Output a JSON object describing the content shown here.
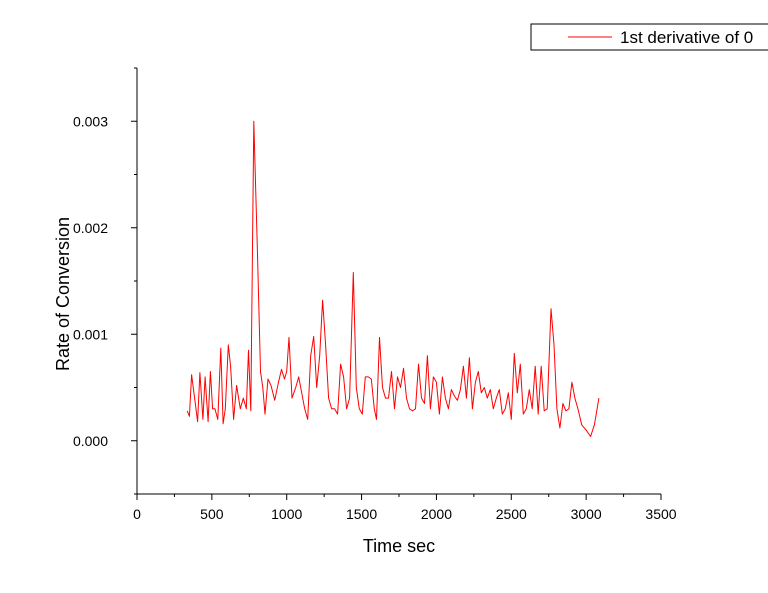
{
  "chart_data": {
    "type": "line",
    "title": "",
    "xlabel": "Time sec",
    "ylabel": "Rate of Conversion",
    "xlim": [
      0,
      3500
    ],
    "ylim": [
      -0.0005,
      0.0035
    ],
    "x_ticks": [
      0,
      500,
      1000,
      1500,
      2000,
      2500,
      3000,
      3500
    ],
    "x_tick_labels": [
      "0",
      "500",
      "1000",
      "1500",
      "2000",
      "2500",
      "3000",
      "3500"
    ],
    "y_ticks": [
      0.0,
      0.001,
      0.002,
      0.003
    ],
    "y_tick_labels": [
      "0.000",
      "0.001",
      "0.002",
      "0.003"
    ],
    "grid": false,
    "legend_position": "top-right",
    "series": [
      {
        "name": "1st derivative of 0",
        "color": "#ff0000",
        "points": [
          [
            335,
            0.00028
          ],
          [
            350,
            0.00023
          ],
          [
            365,
            0.00062
          ],
          [
            385,
            0.0004
          ],
          [
            405,
            0.00018
          ],
          [
            420,
            0.00064
          ],
          [
            440,
            0.0002
          ],
          [
            455,
            0.0006
          ],
          [
            475,
            0.00018
          ],
          [
            490,
            0.00065
          ],
          [
            505,
            0.0003
          ],
          [
            520,
            0.0003
          ],
          [
            540,
            0.0002
          ],
          [
            560,
            0.00087
          ],
          [
            575,
            0.00016
          ],
          [
            590,
            0.0003
          ],
          [
            610,
            0.0009
          ],
          [
            625,
            0.0007
          ],
          [
            645,
            0.0002
          ],
          [
            665,
            0.00052
          ],
          [
            690,
            0.0003
          ],
          [
            710,
            0.0004
          ],
          [
            730,
            0.0003
          ],
          [
            745,
            0.00085
          ],
          [
            760,
            0.00028
          ],
          [
            780,
            0.003
          ],
          [
            805,
            0.00175
          ],
          [
            825,
            0.00065
          ],
          [
            840,
            0.0005
          ],
          [
            855,
            0.00025
          ],
          [
            875,
            0.00058
          ],
          [
            895,
            0.00052
          ],
          [
            920,
            0.00038
          ],
          [
            945,
            0.00055
          ],
          [
            965,
            0.00067
          ],
          [
            985,
            0.00058
          ],
          [
            1000,
            0.00065
          ],
          [
            1015,
            0.00097
          ],
          [
            1035,
            0.0004
          ],
          [
            1060,
            0.0005
          ],
          [
            1080,
            0.0006
          ],
          [
            1100,
            0.00045
          ],
          [
            1120,
            0.0003
          ],
          [
            1140,
            0.0002
          ],
          [
            1160,
            0.0008
          ],
          [
            1180,
            0.00098
          ],
          [
            1200,
            0.0005
          ],
          [
            1220,
            0.0008
          ],
          [
            1240,
            0.00132
          ],
          [
            1260,
            0.0009
          ],
          [
            1280,
            0.0004
          ],
          [
            1300,
            0.0003
          ],
          [
            1320,
            0.0003
          ],
          [
            1340,
            0.00025
          ],
          [
            1360,
            0.00072
          ],
          [
            1380,
            0.0006
          ],
          [
            1400,
            0.0003
          ],
          [
            1420,
            0.0004
          ],
          [
            1445,
            0.00158
          ],
          [
            1465,
            0.0005
          ],
          [
            1485,
            0.0003
          ],
          [
            1505,
            0.00025
          ],
          [
            1525,
            0.0006
          ],
          [
            1545,
            0.0006
          ],
          [
            1565,
            0.00058
          ],
          [
            1585,
            0.0003
          ],
          [
            1600,
            0.0002
          ],
          [
            1620,
            0.00097
          ],
          [
            1640,
            0.0005
          ],
          [
            1660,
            0.0004
          ],
          [
            1680,
            0.0004
          ],
          [
            1700,
            0.00065
          ],
          [
            1720,
            0.0003
          ],
          [
            1740,
            0.0006
          ],
          [
            1760,
            0.0005
          ],
          [
            1780,
            0.00068
          ],
          [
            1800,
            0.0004
          ],
          [
            1820,
            0.0003
          ],
          [
            1840,
            0.00028
          ],
          [
            1860,
            0.0003
          ],
          [
            1880,
            0.00072
          ],
          [
            1900,
            0.0004
          ],
          [
            1920,
            0.00035
          ],
          [
            1940,
            0.0008
          ],
          [
            1960,
            0.0003
          ],
          [
            1980,
            0.0006
          ],
          [
            2000,
            0.00055
          ],
          [
            2020,
            0.00025
          ],
          [
            2040,
            0.0006
          ],
          [
            2060,
            0.0004
          ],
          [
            2080,
            0.0003
          ],
          [
            2100,
            0.00048
          ],
          [
            2120,
            0.00042
          ],
          [
            2140,
            0.00038
          ],
          [
            2160,
            0.00048
          ],
          [
            2180,
            0.0007
          ],
          [
            2200,
            0.0004
          ],
          [
            2220,
            0.00078
          ],
          [
            2240,
            0.0003
          ],
          [
            2260,
            0.00055
          ],
          [
            2280,
            0.00065
          ],
          [
            2300,
            0.00045
          ],
          [
            2320,
            0.0005
          ],
          [
            2340,
            0.0004
          ],
          [
            2360,
            0.00048
          ],
          [
            2380,
            0.0003
          ],
          [
            2400,
            0.0004
          ],
          [
            2420,
            0.00048
          ],
          [
            2440,
            0.00025
          ],
          [
            2460,
            0.0003
          ],
          [
            2480,
            0.00045
          ],
          [
            2500,
            0.0002
          ],
          [
            2520,
            0.00082
          ],
          [
            2540,
            0.00045
          ],
          [
            2560,
            0.00072
          ],
          [
            2580,
            0.00025
          ],
          [
            2600,
            0.0003
          ],
          [
            2620,
            0.00048
          ],
          [
            2640,
            0.0003
          ],
          [
            2660,
            0.0007
          ],
          [
            2680,
            0.00025
          ],
          [
            2700,
            0.0007
          ],
          [
            2720,
            0.00028
          ],
          [
            2740,
            0.0003
          ],
          [
            2765,
            0.00124
          ],
          [
            2785,
            0.0009
          ],
          [
            2805,
            0.0003
          ],
          [
            2825,
            0.00012
          ],
          [
            2845,
            0.00035
          ],
          [
            2865,
            0.00028
          ],
          [
            2885,
            0.0003
          ],
          [
            2905,
            0.00055
          ],
          [
            2925,
            0.0004
          ],
          [
            2945,
            0.0003
          ],
          [
            2970,
            0.00015
          ],
          [
            3000,
            0.0001
          ],
          [
            3030,
            4e-05
          ],
          [
            3055,
            0.00015
          ],
          [
            3085,
            0.0004
          ]
        ]
      }
    ]
  }
}
